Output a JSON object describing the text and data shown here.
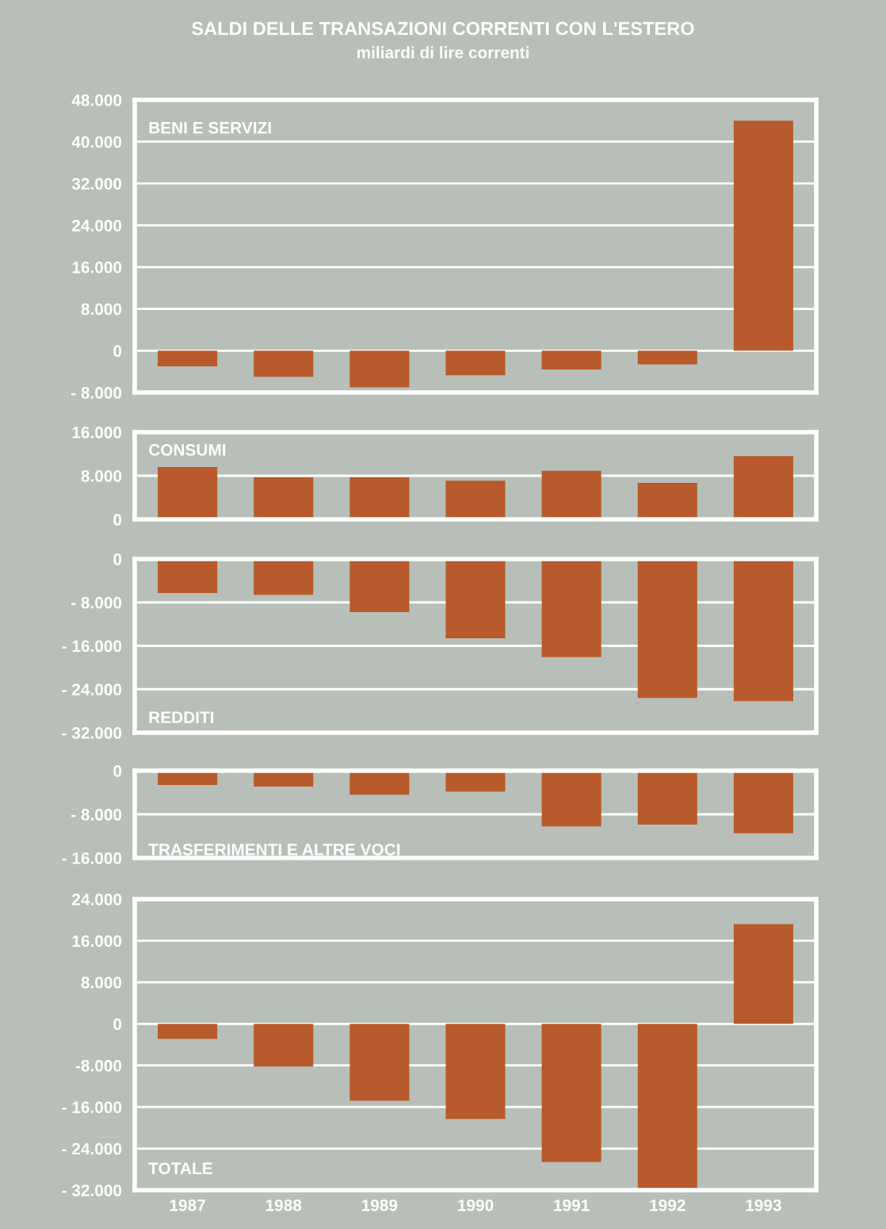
{
  "chart_data": [
    {
      "type": "bar",
      "title": "SALDI DELLE TRANSAZIONI CORRENTI CON L'ESTERO",
      "subtitle": "miliardi di lire correnti",
      "annotations": [
        "BENI E SERVIZI"
      ],
      "categories": [
        "1987",
        "1988",
        "1989",
        "1990",
        "1991",
        "1992",
        "1993"
      ],
      "values": [
        -3000,
        -5000,
        -7000,
        -4700,
        -3600,
        -2600,
        44000
      ],
      "color": "#b85a2c",
      "ylim": [
        -8000,
        48000
      ],
      "yticks": [
        {
          "value": -8000,
          "label": "- 8.000"
        },
        {
          "value": 0,
          "label": "0"
        },
        {
          "value": 8000,
          "label": "8.000"
        },
        {
          "value": 16000,
          "label": "16.000"
        },
        {
          "value": 24000,
          "label": "24.000"
        },
        {
          "value": 32000,
          "label": "32.000"
        },
        {
          "value": 40000,
          "label": "40.000"
        },
        {
          "value": 48000,
          "label": "48.000"
        }
      ],
      "grid": "y",
      "tick_labels": "y"
    },
    {
      "type": "bar",
      "annotations": [
        "CONSUMI"
      ],
      "categories": [
        "1987",
        "1988",
        "1989",
        "1990",
        "1991",
        "1992",
        "1993"
      ],
      "values": [
        9600,
        7700,
        7700,
        7100,
        8900,
        6700,
        11600
      ],
      "color": "#b85a2c",
      "ylim": [
        0,
        16000
      ],
      "yticks": [
        {
          "value": 0,
          "label": "0"
        },
        {
          "value": 8000,
          "label": "8.000"
        },
        {
          "value": 16000,
          "label": "16.000"
        }
      ],
      "grid": "y",
      "tick_labels": "y"
    },
    {
      "type": "bar",
      "annotations": [
        "REDDITI"
      ],
      "categories": [
        "1987",
        "1988",
        "1989",
        "1990",
        "1991",
        "1992",
        "1993"
      ],
      "values": [
        -6300,
        -6600,
        -9800,
        -14600,
        -18100,
        -25600,
        -26200
      ],
      "color": "#b85a2c",
      "ylim": [
        -32000,
        0
      ],
      "yticks": [
        {
          "value": -32000,
          "label": "- 32.000"
        },
        {
          "value": -24000,
          "label": "- 24.000"
        },
        {
          "value": -16000,
          "label": "- 16.000"
        },
        {
          "value": -8000,
          "label": "- 8.000"
        },
        {
          "value": 0,
          "label": "0"
        }
      ],
      "grid": "y",
      "tick_labels": "y"
    },
    {
      "type": "bar",
      "annotations": [
        "TRASFERIMENTI E ALTRE VOCI"
      ],
      "categories": [
        "1987",
        "1988",
        "1989",
        "1990",
        "1991",
        "1992",
        "1993"
      ],
      "values": [
        -2600,
        -2900,
        -4400,
        -3800,
        -10200,
        -9900,
        -11500
      ],
      "color": "#b85a2c",
      "ylim": [
        -16000,
        0
      ],
      "yticks": [
        {
          "value": -16000,
          "label": "- 16.000"
        },
        {
          "value": -8000,
          "label": "- 8.000"
        },
        {
          "value": 0,
          "label": "0"
        }
      ],
      "grid": "y",
      "tick_labels": "y"
    },
    {
      "type": "bar",
      "annotations": [
        "TOTALE"
      ],
      "categories": [
        "1987",
        "1988",
        "1989",
        "1990",
        "1991",
        "1992",
        "1993"
      ],
      "values": [
        -2900,
        -8200,
        -14800,
        -18300,
        -26600,
        -31600,
        19200
      ],
      "color": "#b85a2c",
      "ylim": [
        -32000,
        24000
      ],
      "yticks": [
        {
          "value": -32000,
          "label": "- 32.000"
        },
        {
          "value": -24000,
          "label": "- 24.000"
        },
        {
          "value": -16000,
          "label": "- 16.000"
        },
        {
          "value": -8000,
          "label": "-8.000"
        },
        {
          "value": 0,
          "label": "0"
        },
        {
          "value": 8000,
          "label": "8.000"
        },
        {
          "value": 16000,
          "label": "16.000"
        },
        {
          "value": 24000,
          "label": "24.000"
        }
      ],
      "grid": "y"
    }
  ]
}
